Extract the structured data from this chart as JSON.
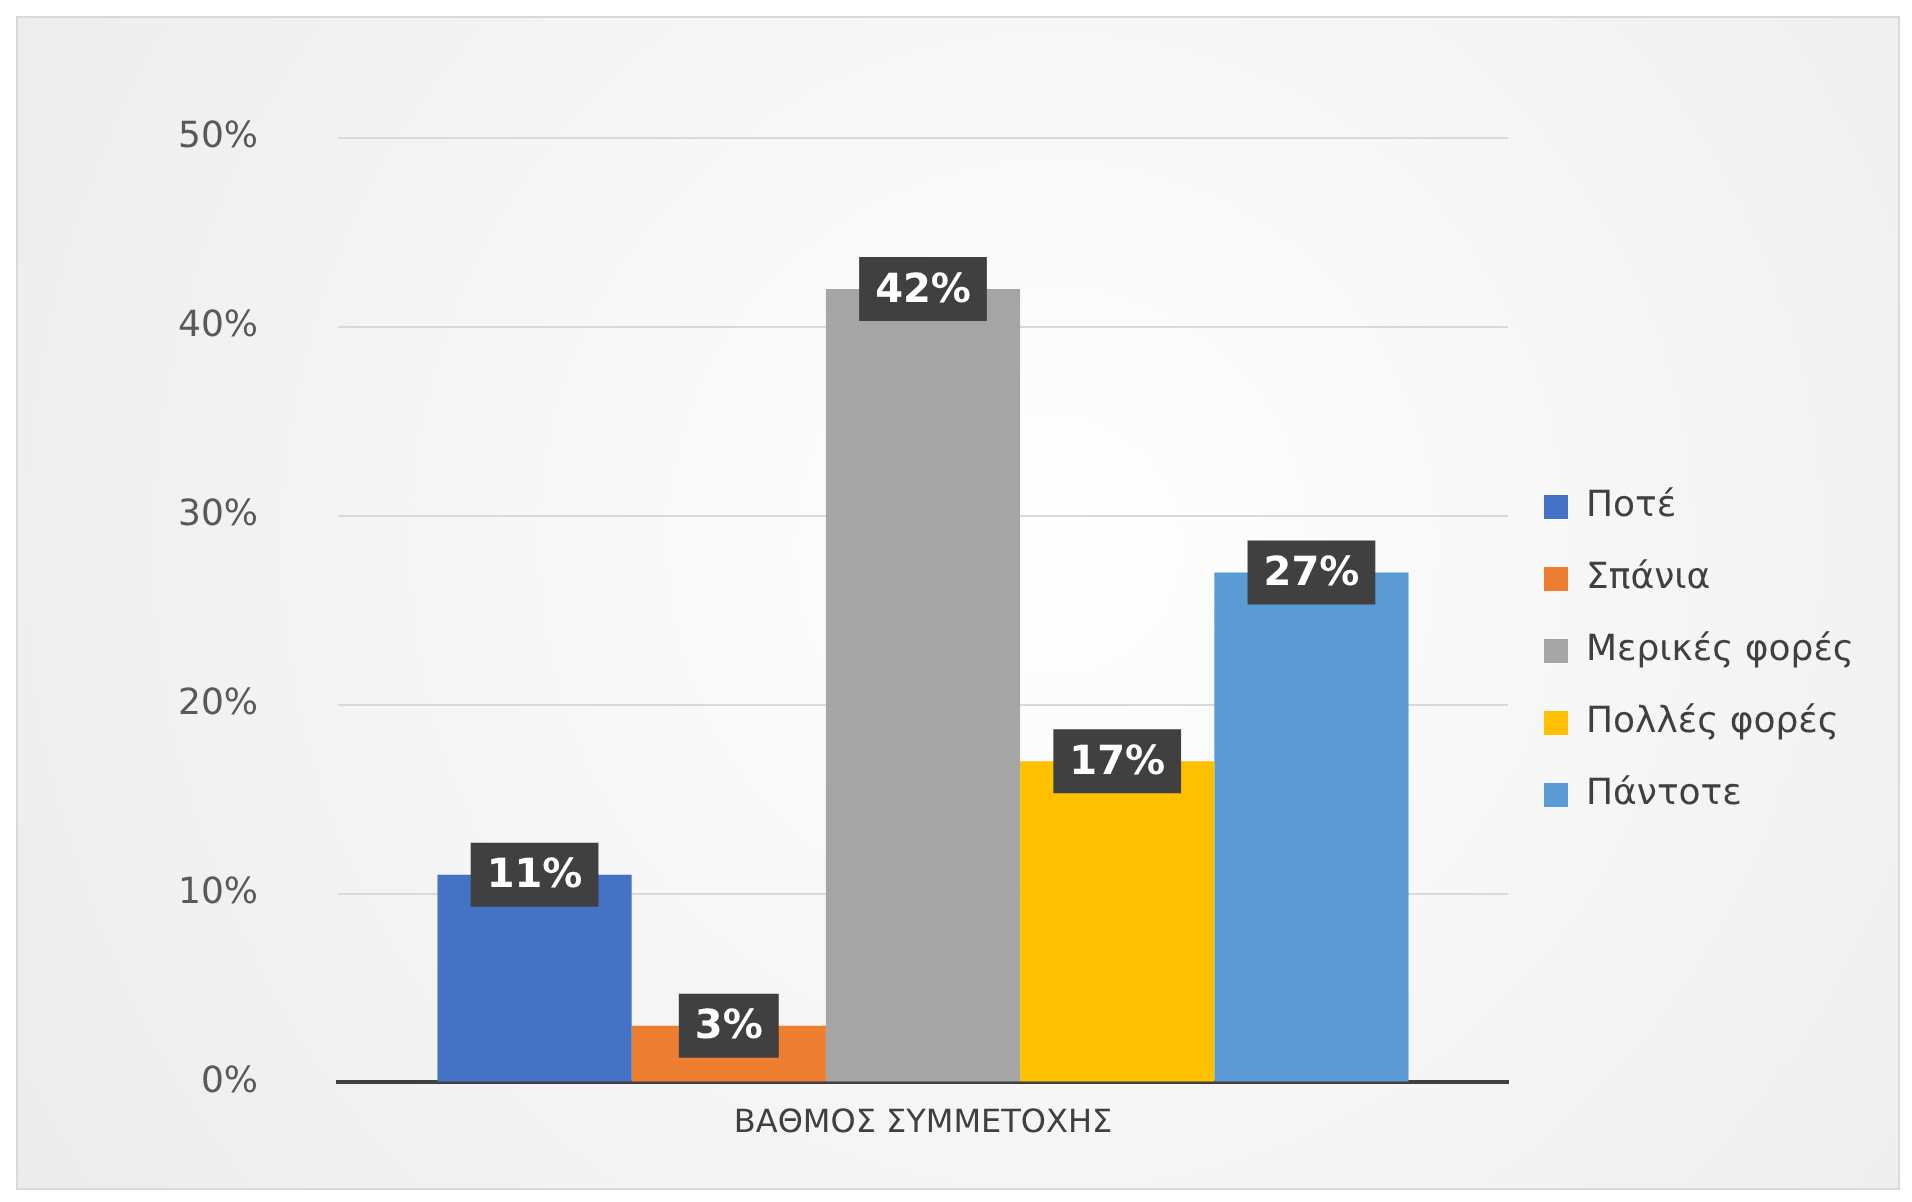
{
  "chart_data": {
    "type": "bar",
    "categories": [
      "ΒΑΘΜΟΣ ΣΥΜΜΕΤΟΧΗΣ"
    ],
    "series": [
      {
        "name": "Ποτέ",
        "color": "#4472c4",
        "values": [
          11
        ],
        "value_labels": [
          "11%"
        ]
      },
      {
        "name": "Σπάνια",
        "color": "#ed7d31",
        "values": [
          3
        ],
        "value_labels": [
          "3%"
        ]
      },
      {
        "name": "Μερικές φορές",
        "color": "#a5a5a5",
        "values": [
          42
        ],
        "value_labels": [
          "42%"
        ]
      },
      {
        "name": "Πολλές φορές",
        "color": "#ffc000",
        "values": [
          17
        ],
        "value_labels": [
          "17%"
        ]
      },
      {
        "name": "Πάντοτε",
        "color": "#5b9bd5",
        "values": [
          27
        ],
        "value_labels": [
          "27%"
        ]
      }
    ],
    "ylim": [
      0,
      50
    ],
    "yticks": [
      {
        "value": 0,
        "label": "0%"
      },
      {
        "value": 10,
        "label": "10%"
      },
      {
        "value": 20,
        "label": "20%"
      },
      {
        "value": 30,
        "label": "30%"
      },
      {
        "value": 40,
        "label": "40%"
      },
      {
        "value": 50,
        "label": "50%"
      }
    ],
    "grid": "y",
    "legend": "right"
  }
}
